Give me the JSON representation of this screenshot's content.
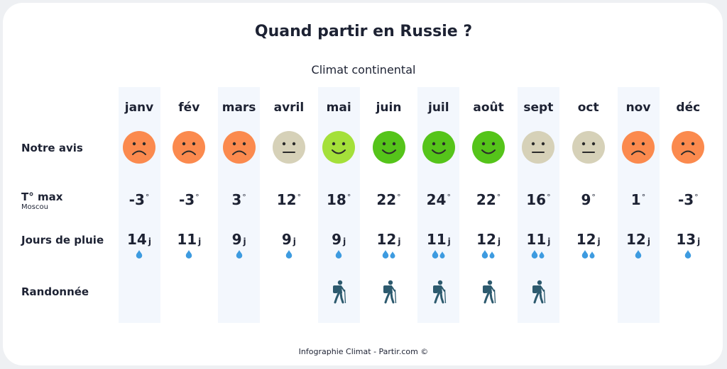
{
  "title": "Quand partir en Russie ?",
  "subtitle": "Climat continental",
  "labels": {
    "avis": "Notre avis",
    "tmax": "T° max",
    "tmax_sub": "Moscou",
    "pluie": "Jours de pluie",
    "rando": "Randonnée"
  },
  "degree_symbol": "°",
  "rain_unit": "j",
  "footer": "Infographie Climat - Partir.com ©",
  "colors": {
    "sad": "#fb8a4e",
    "neutral": "#d6d1b8",
    "happy_light": "#a4e03a",
    "happy": "#55c41a",
    "drop": "#3d9be0",
    "hiker": "#2d5a6e",
    "stripe": "#f3f7fd"
  },
  "months": [
    {
      "name": "janv",
      "avis": "sad",
      "tmax": "-3",
      "pluie": "14",
      "drops": 1,
      "rando": false
    },
    {
      "name": "fév",
      "avis": "sad",
      "tmax": "-3",
      "pluie": "11",
      "drops": 1,
      "rando": false
    },
    {
      "name": "mars",
      "avis": "sad",
      "tmax": "3",
      "pluie": "9",
      "drops": 1,
      "rando": false
    },
    {
      "name": "avril",
      "avis": "neutral",
      "tmax": "12",
      "pluie": "9",
      "drops": 1,
      "rando": false
    },
    {
      "name": "mai",
      "avis": "happy_light",
      "tmax": "18",
      "pluie": "9",
      "drops": 1,
      "rando": true
    },
    {
      "name": "juin",
      "avis": "happy",
      "tmax": "22",
      "pluie": "12",
      "drops": 2,
      "rando": true
    },
    {
      "name": "juil",
      "avis": "happy",
      "tmax": "24",
      "pluie": "11",
      "drops": 2,
      "rando": true
    },
    {
      "name": "août",
      "avis": "happy",
      "tmax": "22",
      "pluie": "12",
      "drops": 2,
      "rando": true
    },
    {
      "name": "sept",
      "avis": "neutral",
      "tmax": "16",
      "pluie": "11",
      "drops": 2,
      "rando": true
    },
    {
      "name": "oct",
      "avis": "neutral",
      "tmax": "9",
      "pluie": "12",
      "drops": 2,
      "rando": false
    },
    {
      "name": "nov",
      "avis": "sad",
      "tmax": "1",
      "pluie": "12",
      "drops": 1,
      "rando": false
    },
    {
      "name": "déc",
      "avis": "sad",
      "tmax": "-3",
      "pluie": "13",
      "drops": 1,
      "rando": false
    }
  ]
}
